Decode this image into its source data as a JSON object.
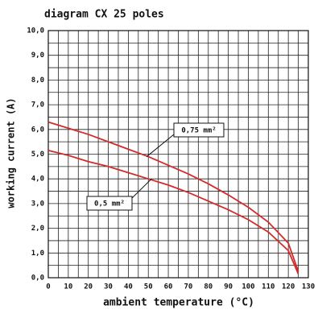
{
  "chart_data": {
    "type": "line",
    "title": "diagram CX 25 poles",
    "x_label": "ambient temperature (°C)",
    "y_label": "working current (A)",
    "x": [
      0,
      10,
      20,
      30,
      40,
      50,
      60,
      70,
      80,
      90,
      100,
      110,
      120,
      125
    ],
    "series": [
      {
        "name": "0,75 mm²",
        "color": "#d42a2a",
        "values": [
          6.3,
          6.05,
          5.8,
          5.5,
          5.2,
          4.9,
          4.55,
          4.2,
          3.8,
          3.35,
          2.85,
          2.25,
          1.4,
          0.25
        ]
      },
      {
        "name": "0,5 mm²",
        "color": "#d42a2a",
        "values": [
          5.15,
          4.95,
          4.7,
          4.5,
          4.25,
          4.0,
          3.75,
          3.45,
          3.1,
          2.75,
          2.35,
          1.85,
          1.1,
          0.15
        ]
      }
    ],
    "xlim": [
      0,
      130
    ],
    "ylim": [
      0,
      10
    ],
    "xticks": [
      0,
      10,
      20,
      30,
      40,
      50,
      60,
      70,
      80,
      90,
      100,
      110,
      120,
      130
    ],
    "yticks": [
      {
        "value": 0,
        "label": "0,0"
      },
      {
        "value": 1,
        "label": "1,0"
      },
      {
        "value": 2,
        "label": "2,0"
      },
      {
        "value": 3,
        "label": "3,0"
      },
      {
        "value": 4,
        "label": "4,0"
      },
      {
        "value": 5,
        "label": "5,0"
      },
      {
        "value": 6,
        "label": "6,0"
      },
      {
        "value": 7,
        "label": "7,0"
      },
      {
        "value": 8,
        "label": "8,0"
      },
      {
        "value": 9,
        "label": "9,0"
      },
      {
        "value": 10,
        "label": "10,0"
      }
    ],
    "minor_xticks": [
      5,
      15,
      25,
      35,
      45,
      55,
      65,
      75,
      85,
      95,
      105,
      115,
      125
    ],
    "minor_yticks": [
      0.5,
      1.5,
      2.5,
      3.5,
      4.5,
      5.5,
      6.5,
      7.5,
      8.5,
      9.5
    ],
    "grid": true
  }
}
